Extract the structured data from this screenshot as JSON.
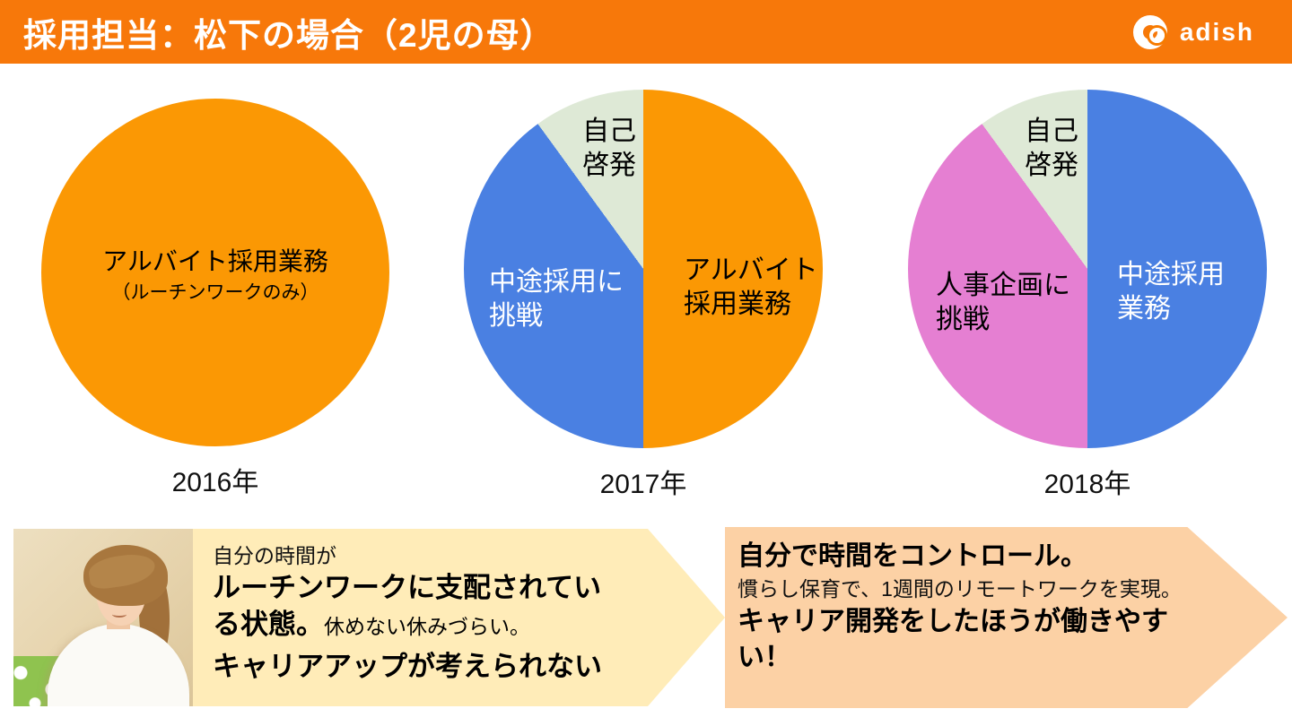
{
  "header": {
    "title": "採用担当：松下の場合（2児の母）",
    "logo_text": "adish",
    "bg_color": "#F7780A"
  },
  "colors": {
    "header_bg": "#F7780A",
    "pie_orange": "#FB9804",
    "pie_blue": "#4A80E2",
    "pie_green": "#DEE9D6",
    "pie_pink": "#E57FD2",
    "left_box_bg": "#FFECB8",
    "right_box_bg": "#FCD1A5"
  },
  "chart_data": [
    {
      "type": "pie",
      "year_label": "2016年",
      "center_label": "アルバイト採用業務",
      "center_sublabel": "（ルーチンワークのみ）",
      "slices": [
        {
          "label": "アルバイト採用業務（ルーチンワークのみ）",
          "value": 100,
          "color": "#FB9804"
        }
      ]
    },
    {
      "type": "pie",
      "year_label": "2017年",
      "slices": [
        {
          "label": "アルバイト\n採用業務",
          "value": 50,
          "color": "#FB9804"
        },
        {
          "label": "中途採用に\n挑戦",
          "value": 40,
          "color": "#4A80E2"
        },
        {
          "label": "自己\n啓発",
          "value": 10,
          "color": "#DEE9D6"
        }
      ]
    },
    {
      "type": "pie",
      "year_label": "2018年",
      "slices": [
        {
          "label": "中途採用\n業務",
          "value": 50,
          "color": "#4A80E2"
        },
        {
          "label": "人事企画に\n挑戦",
          "value": 40,
          "color": "#E57FD2"
        },
        {
          "label": "自己\n啓発",
          "value": 10,
          "color": "#DEE9D6"
        }
      ]
    }
  ],
  "left_box": {
    "line1": "自分の時間が",
    "line2": "ルーチンワークに支配されてい",
    "line3_bold": "る状態。",
    "line3_regular": "休めない休みづらい。",
    "line4": "キャリアアップが考えられない"
  },
  "right_box": {
    "line1": "自分で時間をコントロール。",
    "line2": "慣らし保育で、1週間のリモートワークを実現。",
    "line3": "キャリア開発をしたほうが働きやす",
    "line4": "い！"
  }
}
